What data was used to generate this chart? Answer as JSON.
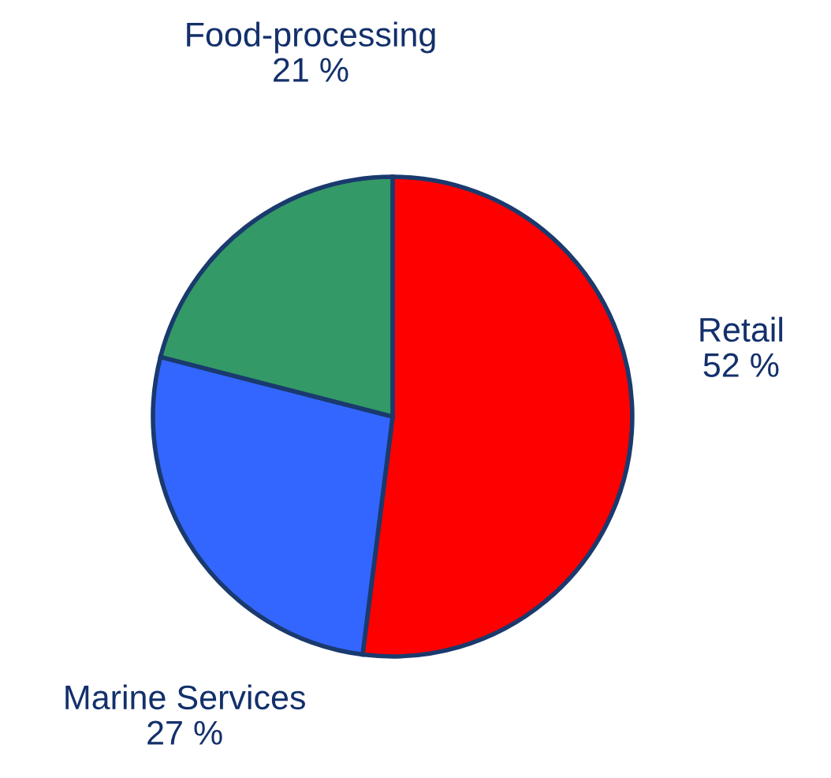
{
  "chart_data": {
    "type": "pie",
    "categories": [
      "Retail",
      "Marine Services",
      "Food-processing"
    ],
    "values": [
      52,
      27,
      21
    ],
    "colors": [
      "#ff0000",
      "#3366ff",
      "#339966"
    ],
    "value_labels": [
      "52 %",
      "27 %",
      "21 %"
    ],
    "legend": false
  }
}
